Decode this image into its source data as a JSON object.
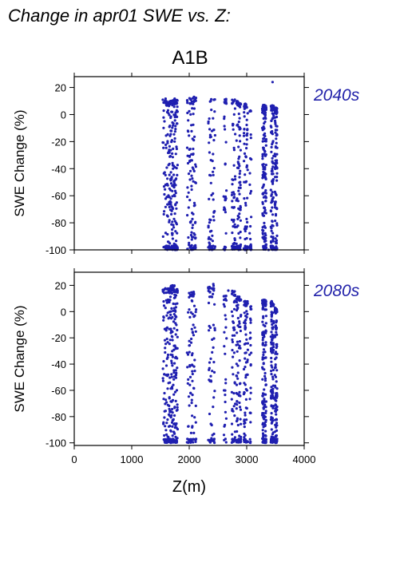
{
  "page_title": "Change in apr01 SWE vs. Z:",
  "scenario": "A1B",
  "colors": {
    "points": "#1f1fb0",
    "period_label": "#2222aa"
  },
  "chart_data": [
    {
      "type": "scatter",
      "period_label": "2040s",
      "ylabel": "SWE Change (%)",
      "xlim": [
        0,
        4000
      ],
      "ylim": [
        -100,
        28
      ],
      "yticks": [
        20,
        0,
        -20,
        -40,
        -60,
        -80,
        -100
      ],
      "xticks": [
        0,
        1000,
        2000,
        3000,
        4000
      ],
      "columns": [
        {
          "x0": 1540,
          "x1": 1600,
          "ymin": -100,
          "ymax": 12,
          "n": 40
        },
        {
          "x0": 1600,
          "x1": 1680,
          "ymin": -100,
          "ymax": 10,
          "n": 90
        },
        {
          "x0": 1680,
          "x1": 1760,
          "ymin": -100,
          "ymax": 12,
          "n": 110
        },
        {
          "x0": 1760,
          "x1": 1800,
          "ymin": -100,
          "ymax": 11,
          "n": 50
        },
        {
          "x0": 1960,
          "x1": 2050,
          "ymin": -100,
          "ymax": 12,
          "n": 60
        },
        {
          "x0": 2050,
          "x1": 2120,
          "ymin": -100,
          "ymax": 14,
          "n": 55
        },
        {
          "x0": 2330,
          "x1": 2450,
          "ymin": -100,
          "ymax": 14,
          "n": 70
        },
        {
          "x0": 2600,
          "x1": 2650,
          "ymin": -100,
          "ymax": 12,
          "n": 35
        },
        {
          "x0": 2740,
          "x1": 2800,
          "ymin": -100,
          "ymax": 12,
          "n": 60
        },
        {
          "x0": 2820,
          "x1": 2900,
          "ymin": -100,
          "ymax": 10,
          "n": 90
        },
        {
          "x0": 2950,
          "x1": 3020,
          "ymin": -100,
          "ymax": 8,
          "n": 80
        },
        {
          "x0": 3050,
          "x1": 3080,
          "ymin": -100,
          "ymax": 5,
          "n": 25
        },
        {
          "x0": 3270,
          "x1": 3340,
          "ymin": -100,
          "ymax": 7,
          "n": 170
        },
        {
          "x0": 3420,
          "x1": 3470,
          "ymin": -100,
          "ymax": 7,
          "n": 130
        },
        {
          "x0": 3490,
          "x1": 3530,
          "ymin": -100,
          "ymax": 5,
          "n": 110
        }
      ],
      "outliers": [
        [
          3450,
          24
        ],
        [
          3520,
          -93
        ],
        [
          3380,
          -100
        ]
      ]
    },
    {
      "type": "scatter",
      "period_label": "2080s",
      "ylabel": "SWE Change (%)",
      "xlabel": "Z(m)",
      "xlim": [
        0,
        4000
      ],
      "ylim": [
        -102,
        30
      ],
      "yticks": [
        20,
        0,
        -20,
        -40,
        -60,
        -80,
        -100
      ],
      "xticks": [
        0,
        1000,
        2000,
        3000,
        4000
      ],
      "columns": [
        {
          "x0": 1540,
          "x1": 1600,
          "ymin": -100,
          "ymax": 19,
          "n": 45
        },
        {
          "x0": 1600,
          "x1": 1680,
          "ymin": -100,
          "ymax": 18,
          "n": 100
        },
        {
          "x0": 1680,
          "x1": 1760,
          "ymin": -100,
          "ymax": 20,
          "n": 120
        },
        {
          "x0": 1760,
          "x1": 1800,
          "ymin": -100,
          "ymax": 18,
          "n": 50
        },
        {
          "x0": 1960,
          "x1": 2050,
          "ymin": -100,
          "ymax": 15,
          "n": 55
        },
        {
          "x0": 2050,
          "x1": 2120,
          "ymin": -100,
          "ymax": 16,
          "n": 50
        },
        {
          "x0": 2330,
          "x1": 2450,
          "ymin": -100,
          "ymax": 20,
          "n": 65
        },
        {
          "x0": 2600,
          "x1": 2650,
          "ymin": -100,
          "ymax": 12,
          "n": 30
        },
        {
          "x0": 2740,
          "x1": 2800,
          "ymin": -100,
          "ymax": 16,
          "n": 55
        },
        {
          "x0": 2820,
          "x1": 2900,
          "ymin": -100,
          "ymax": 12,
          "n": 90
        },
        {
          "x0": 2950,
          "x1": 3020,
          "ymin": -100,
          "ymax": 8,
          "n": 85
        },
        {
          "x0": 3050,
          "x1": 3080,
          "ymin": -100,
          "ymax": 5,
          "n": 25
        },
        {
          "x0": 3270,
          "x1": 3340,
          "ymin": -100,
          "ymax": 9,
          "n": 180
        },
        {
          "x0": 3420,
          "x1": 3470,
          "ymin": -100,
          "ymax": 8,
          "n": 140
        },
        {
          "x0": 3490,
          "x1": 3530,
          "ymin": -100,
          "ymax": 3,
          "n": 120
        }
      ],
      "outliers": [
        [
          2420,
          21
        ],
        [
          2680,
          16
        ],
        [
          3500,
          -100
        ]
      ]
    }
  ]
}
